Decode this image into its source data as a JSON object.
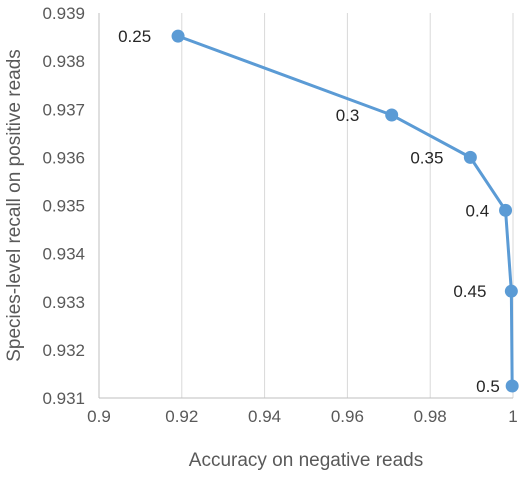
{
  "chart_data": {
    "type": "line",
    "xlabel": "Accuracy on negative reads",
    "ylabel": "Species-level recall on positive reads",
    "xlim": [
      0.9,
      1.0
    ],
    "ylim": [
      0.931,
      0.939
    ],
    "xticks": [
      0.9,
      0.92,
      0.94,
      0.96,
      0.98,
      1.0
    ],
    "xtick_labels": [
      "0.9",
      "0.92",
      "0.94",
      "0.96",
      "0.98",
      "1"
    ],
    "yticks": [
      0.931,
      0.932,
      0.933,
      0.934,
      0.935,
      0.936,
      0.937,
      0.938,
      0.939
    ],
    "ytick_labels": [
      "0.931",
      "0.932",
      "0.933",
      "0.934",
      "0.935",
      "0.936",
      "0.937",
      "0.938",
      "0.939"
    ],
    "grid": "vertical",
    "series": [
      {
        "color": "#5B9BD5",
        "points": [
          {
            "x": 0.9191,
            "y": 0.93852,
            "label": "0.25"
          },
          {
            "x": 0.9707,
            "y": 0.93688,
            "label": "0.3"
          },
          {
            "x": 0.9897,
            "y": 0.936,
            "label": "0.35"
          },
          {
            "x": 0.9982,
            "y": 0.9349,
            "label": "0.4"
          },
          {
            "x": 0.9996,
            "y": 0.93322,
            "label": "0.45"
          },
          {
            "x": 0.9998,
            "y": 0.93125,
            "label": "0.5"
          }
        ]
      }
    ]
  }
}
